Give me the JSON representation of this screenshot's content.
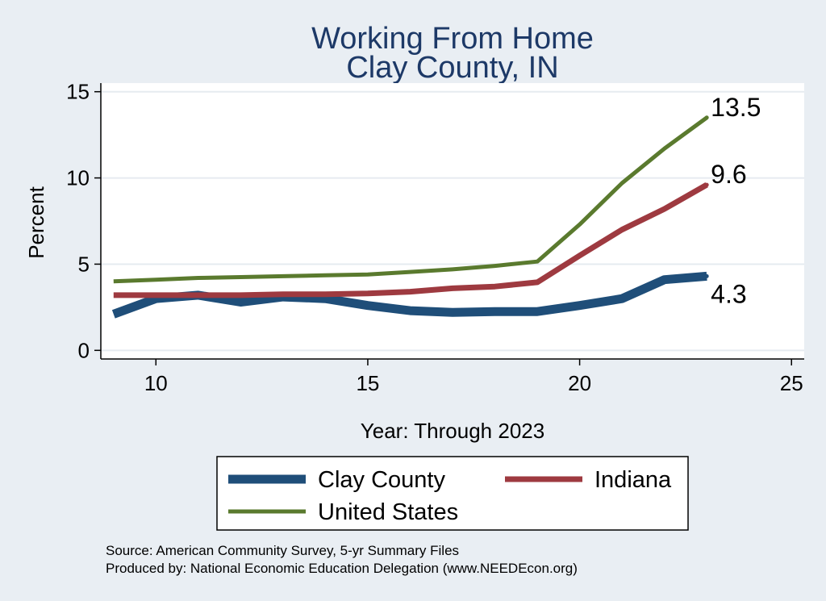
{
  "chart_data": {
    "type": "line",
    "title": "Working From Home",
    "subtitle": "Clay County, IN",
    "xlabel": "Year: Through 2023",
    "ylabel": "Percent",
    "xlim": [
      8.7,
      25.3
    ],
    "ylim": [
      -0.5,
      15.5
    ],
    "xticks": [
      10,
      15,
      20,
      25
    ],
    "yticks": [
      0,
      5,
      10,
      15
    ],
    "grid": true,
    "legend_position": "bottom",
    "series": [
      {
        "name": "Clay County",
        "color": "#1f4e79",
        "width": 11,
        "x": [
          9,
          10,
          11,
          12,
          13,
          14,
          15,
          16,
          17,
          18,
          19,
          20,
          21,
          22,
          23
        ],
        "y": [
          2.1,
          3.0,
          3.2,
          2.8,
          3.1,
          3.0,
          2.6,
          2.3,
          2.2,
          2.25,
          2.25,
          2.6,
          3.0,
          4.1,
          4.3
        ],
        "end_label": "4.3"
      },
      {
        "name": "Indiana",
        "color": "#9e3a40",
        "width": 7,
        "x": [
          9,
          10,
          11,
          12,
          13,
          14,
          15,
          16,
          17,
          18,
          19,
          20,
          21,
          22,
          23
        ],
        "y": [
          3.2,
          3.2,
          3.2,
          3.2,
          3.25,
          3.25,
          3.3,
          3.4,
          3.6,
          3.7,
          3.95,
          5.5,
          7.0,
          8.2,
          9.6
        ],
        "end_label": "9.6"
      },
      {
        "name": "United States",
        "color": "#5a7a2e",
        "width": 5,
        "x": [
          9,
          10,
          11,
          12,
          13,
          14,
          15,
          16,
          17,
          18,
          19,
          20,
          21,
          22,
          23
        ],
        "y": [
          4.0,
          4.1,
          4.2,
          4.25,
          4.3,
          4.35,
          4.4,
          4.55,
          4.7,
          4.9,
          5.15,
          7.3,
          9.7,
          11.7,
          13.5
        ],
        "end_label": "13.5"
      }
    ]
  },
  "notes": {
    "source": "Source: American Community Survey, 5-yr Summary Files",
    "produced_by": "Produced by: National Economic Education Delegation (www.NEEDEcon.org)"
  }
}
